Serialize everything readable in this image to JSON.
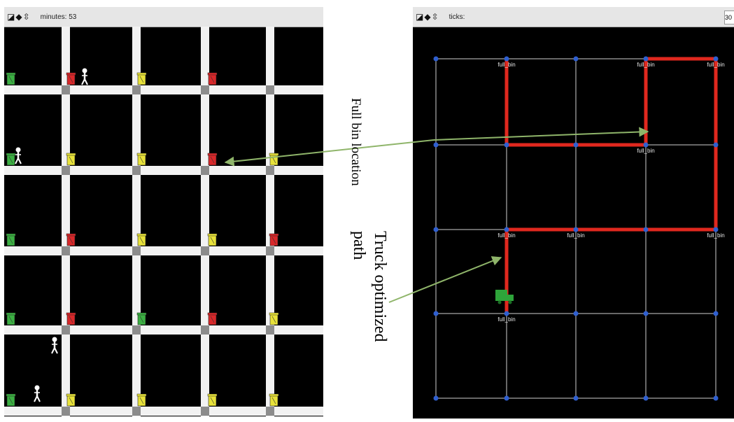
{
  "left_window": {
    "controls": "◪◆⇳",
    "title": "minutes: 53"
  },
  "right_window": {
    "controls": "◪◆⇳",
    "title": "ticks:",
    "counter": "30",
    "node_label": "full_bin"
  },
  "annotations": {
    "full_bin_location": "Full bin location",
    "truck_path_line1": "Truck optimized",
    "truck_path_line2": "path"
  },
  "colors": {
    "background": "#000000",
    "road": "#f2f2f2",
    "intersection": "#8c8c8c",
    "grid_line": "#8a8a8a",
    "node": "#2f5fd0",
    "path": "#e0281e",
    "truck": "#2ea43a",
    "arrow": "#8fb56a",
    "bin_green": "#3cb043",
    "bin_red": "#d8282a",
    "bin_yellow": "#e8e23a"
  },
  "bins": {
    "rows": [
      [
        "bin_green",
        "bin_red",
        "bin_yellow",
        "bin_red",
        ""
      ],
      [
        "bin_green",
        "bin_yellow",
        "bin_yellow",
        "bin_red",
        "bin_yellow"
      ],
      [
        "bin_green",
        "bin_red",
        "bin_yellow",
        "bin_yellow",
        "bin_red"
      ],
      [
        "bin_green",
        "bin_red",
        "bin_green",
        "bin_red",
        "bin_yellow"
      ],
      [
        "bin_green",
        "bin_yellow",
        "bin_yellow",
        "bin_yellow",
        "bin_yellow"
      ]
    ]
  },
  "full_bin_nodes": [
    [
      0,
      1
    ],
    [
      0,
      3
    ],
    [
      0,
      4
    ],
    [
      1,
      3
    ],
    [
      2,
      1
    ],
    [
      2,
      2
    ],
    [
      2,
      4
    ],
    [
      3,
      1
    ]
  ],
  "optimized_path": [
    [
      3,
      1
    ],
    [
      2,
      1
    ],
    [
      2,
      4
    ],
    [
      0,
      4
    ],
    [
      0,
      3
    ],
    [
      1,
      3
    ],
    [
      1,
      1
    ],
    [
      0,
      1
    ]
  ]
}
